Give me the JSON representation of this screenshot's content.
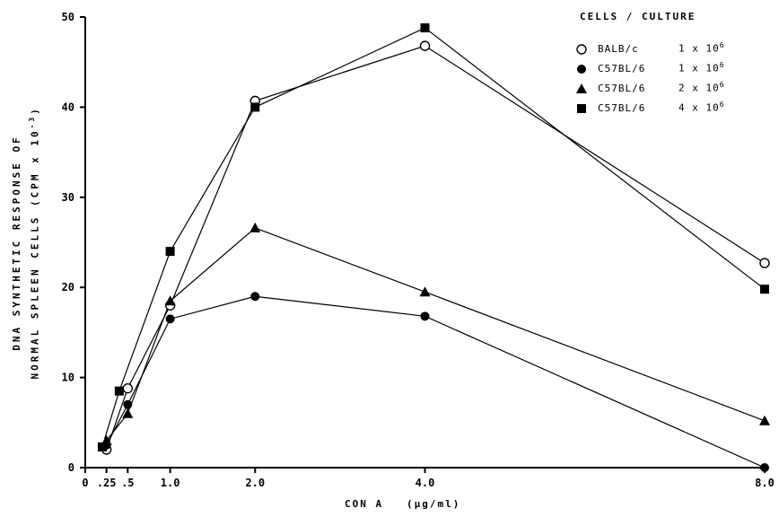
{
  "chart_data": {
    "type": "line",
    "ylabel_line1": "DNA SYNTHETIC RESPONSE OF",
    "ylabel_line2": "NORMAL SPLEEN CELLS (CPM x 10",
    "ylabel_exponent": "-3",
    "ylabel_close": ")",
    "xlabel": "CON A   (μg/ml)",
    "xlim": [
      0,
      8
    ],
    "ylim": [
      0,
      50
    ],
    "x_ticks": [
      0,
      0.25,
      0.5,
      1,
      2,
      4,
      8
    ],
    "x_tick_labels": [
      "0",
      ".25",
      ".5",
      "1.0",
      "2.0",
      "4.0",
      "8.0"
    ],
    "y_ticks": [
      0,
      10,
      20,
      30,
      40,
      50
    ],
    "y_tick_labels": [
      "0",
      "10",
      "20",
      "30",
      "40",
      "50"
    ],
    "legend_title": "CELLS / CULTURE",
    "series": [
      {
        "name": "BALB/c",
        "dose_base": "1 x 10",
        "dose_exp": "6",
        "marker": "open-circle",
        "x": [
          0.25,
          0.5,
          1,
          2,
          4,
          8
        ],
        "y": [
          2,
          8.8,
          18,
          40.7,
          46.8,
          22.7
        ]
      },
      {
        "name": "C57BL/6",
        "dose_base": "1 x 10",
        "dose_exp": "6",
        "marker": "filled-circle",
        "x": [
          0.25,
          0.5,
          1,
          2,
          4,
          8
        ],
        "y": [
          2.5,
          7,
          16.5,
          19,
          16.8,
          0
        ]
      },
      {
        "name": "C57BL/6",
        "dose_base": "2 x 10",
        "dose_exp": "6",
        "marker": "filled-triangle",
        "x": [
          0.25,
          0.5,
          1,
          2,
          4,
          8
        ],
        "y": [
          3,
          6,
          18.5,
          26.6,
          19.5,
          5.2
        ]
      },
      {
        "name": "C57BL/6",
        "dose_base": "4 x 10",
        "dose_exp": "6",
        "marker": "filled-square",
        "x": [
          0.2,
          0.4,
          1,
          2,
          4,
          8
        ],
        "y": [
          2.3,
          8.5,
          24,
          40,
          48.8,
          19.8
        ]
      }
    ]
  }
}
